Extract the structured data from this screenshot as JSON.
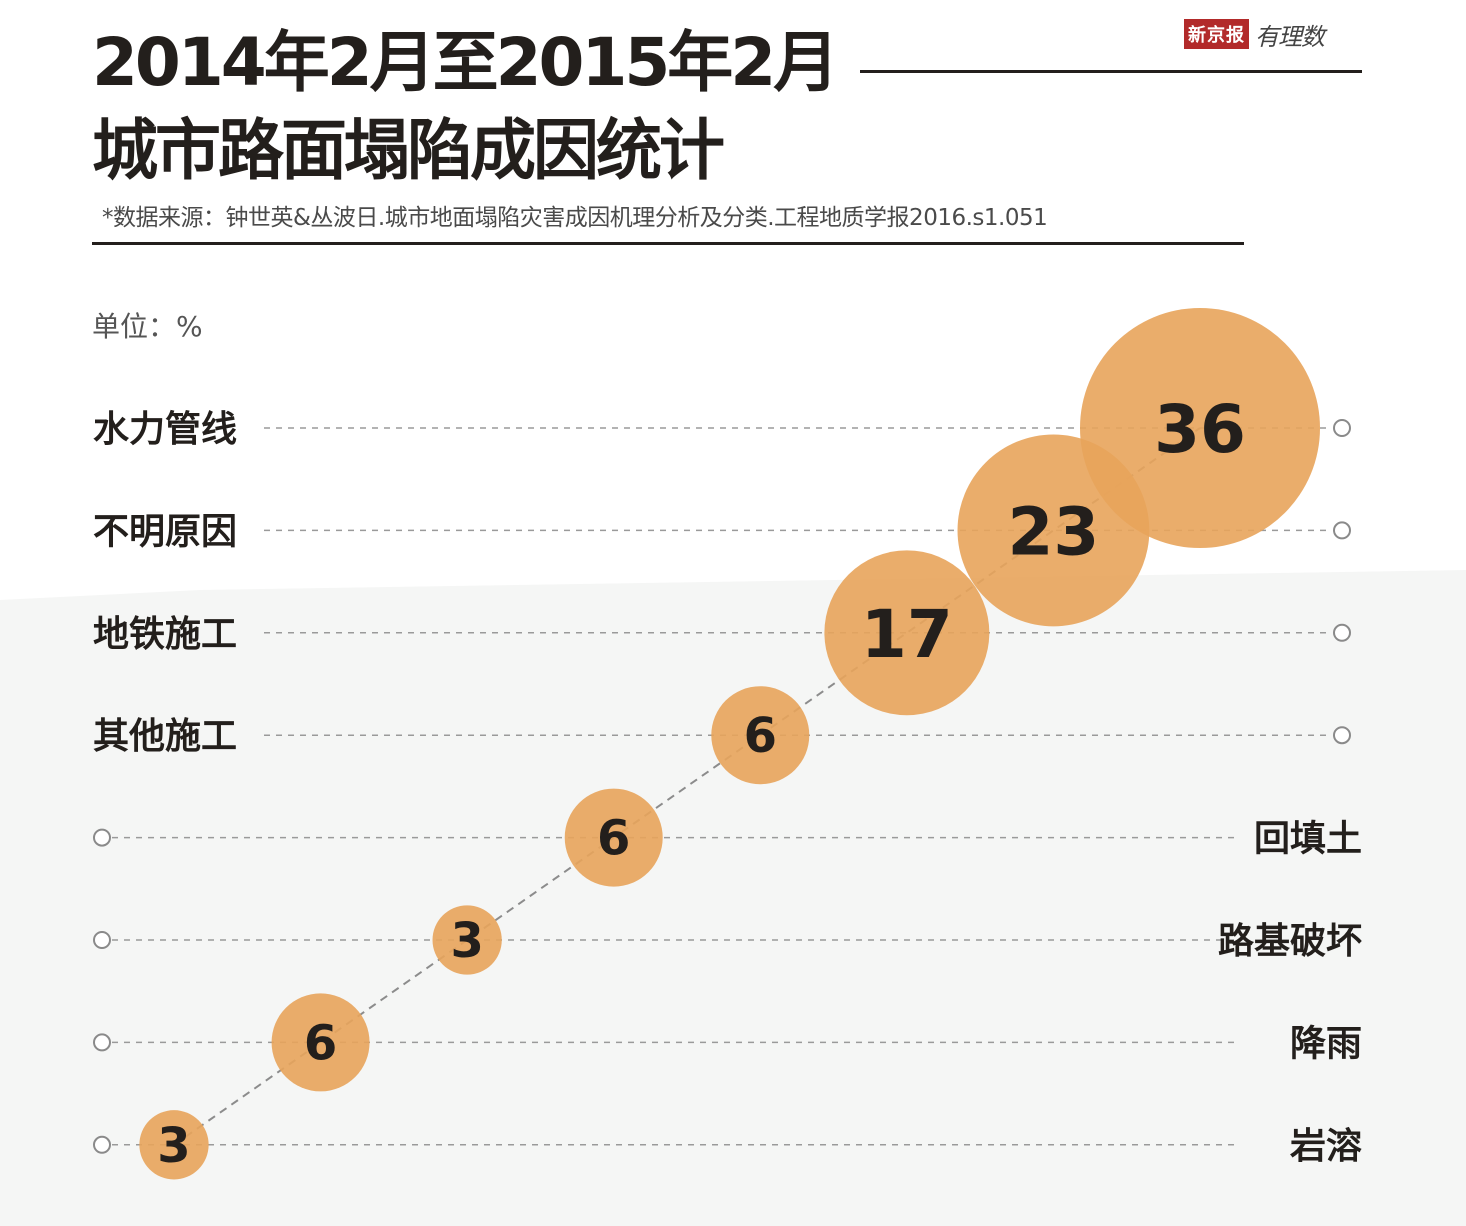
{
  "header": {
    "title_line1": "2014年2月至2015年2月",
    "title_line2": "城市路面塌陷成因统计",
    "source": "*数据来源：钟世英&丛波日.城市地面塌陷灾害成因机理分析及分类.工程地质学报2016.s1.051",
    "logo_paper": "新京报",
    "logo_text": "有理数"
  },
  "chart_data": {
    "type": "bubble",
    "unit_label": "单位：%",
    "categories": [
      "水力管线",
      "不明原因",
      "地铁施工",
      "其他施工",
      "回填土",
      "路基破坏",
      "降雨",
      "岩溶"
    ],
    "values": [
      36,
      23,
      17,
      6,
      6,
      3,
      6,
      3
    ],
    "label_side": [
      "left",
      "left",
      "left",
      "left",
      "right",
      "right",
      "right",
      "right"
    ],
    "bubble_color": "#e8a45b",
    "text_color": "#231f1c",
    "grid": "dashed"
  }
}
